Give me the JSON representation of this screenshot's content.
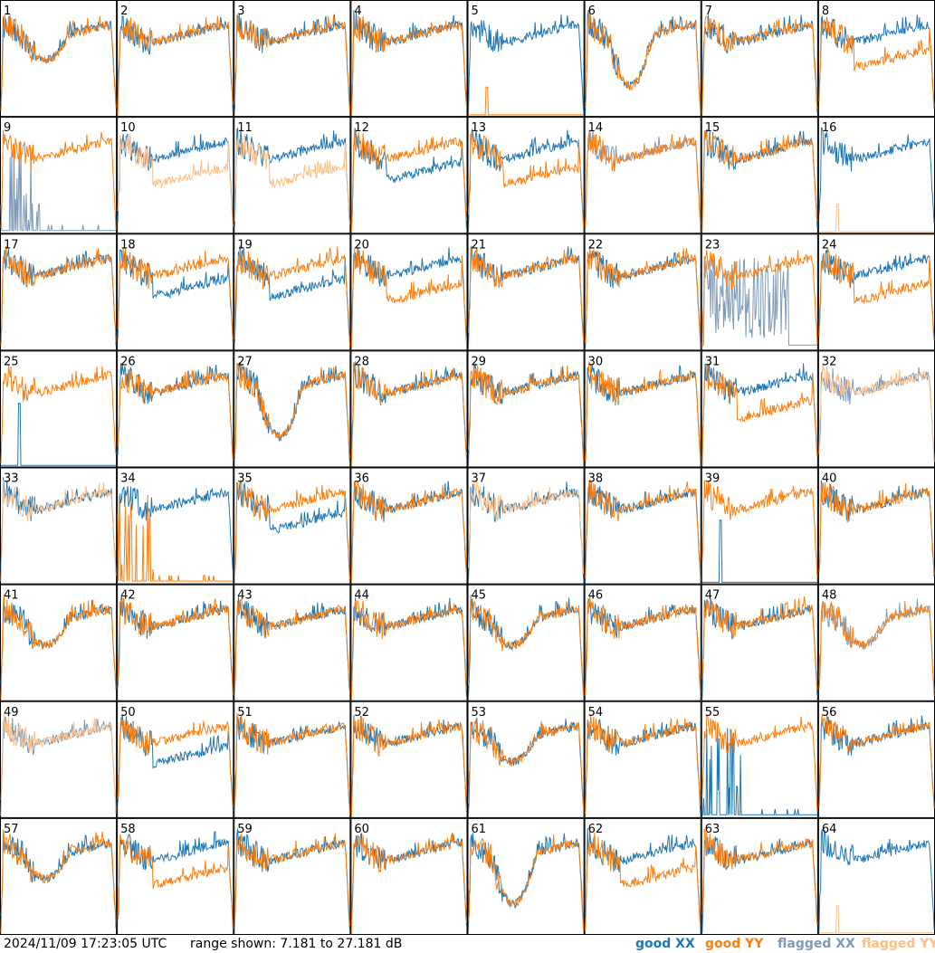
{
  "footer": {
    "timestamp": "2024/11/09 17:23:05 UTC",
    "range_text": "range shown: 7.181 to 27.181 dB"
  },
  "legend": [
    {
      "label": "good XX",
      "color": "#1f77b4"
    },
    {
      "label": "good YY",
      "color": "#ff7f0e"
    },
    {
      "label": "flagged XX",
      "color": "#7f9bb8"
    },
    {
      "label": "flagged YY",
      "color": "#ffbf86"
    }
  ],
  "chart_data": {
    "type": "line",
    "ylim": [
      7.181,
      27.181
    ],
    "yunit": "dB",
    "layout": "8x8 small multiples",
    "panels": [
      {
        "id": "1",
        "xx": "good",
        "yy": "good",
        "style": "dip"
      },
      {
        "id": "2",
        "xx": "good",
        "yy": "good",
        "style": "normal"
      },
      {
        "id": "3",
        "xx": "good",
        "yy": "good",
        "style": "normal"
      },
      {
        "id": "4",
        "xx": "good",
        "yy": "good",
        "style": "normal"
      },
      {
        "id": "5",
        "xx": "good",
        "yy": "good",
        "style": "yyflat"
      },
      {
        "id": "6",
        "xx": "good",
        "yy": "good",
        "style": "deepdip"
      },
      {
        "id": "7",
        "xx": "good",
        "yy": "good",
        "style": "normal"
      },
      {
        "id": "8",
        "xx": "good",
        "yy": "good",
        "style": "lowyy"
      },
      {
        "id": "9",
        "xx": "flagged",
        "yy": "good",
        "style": "xxspikes"
      },
      {
        "id": "10",
        "xx": "good",
        "yy": "flagged",
        "style": "lowyy"
      },
      {
        "id": "11",
        "xx": "good",
        "yy": "flagged",
        "style": "lowyy"
      },
      {
        "id": "12",
        "xx": "good",
        "yy": "good",
        "style": "lowxx"
      },
      {
        "id": "13",
        "xx": "good",
        "yy": "good",
        "style": "lowyy"
      },
      {
        "id": "14",
        "xx": "flagged",
        "yy": "good",
        "style": "normal"
      },
      {
        "id": "15",
        "xx": "good",
        "yy": "good",
        "style": "normal"
      },
      {
        "id": "16",
        "xx": "good",
        "yy": "flagged",
        "style": "yyflat"
      },
      {
        "id": "17",
        "xx": "good",
        "yy": "good",
        "style": "normal"
      },
      {
        "id": "18",
        "xx": "good",
        "yy": "good",
        "style": "lowxx"
      },
      {
        "id": "19",
        "xx": "good",
        "yy": "good",
        "style": "lowxx"
      },
      {
        "id": "20",
        "xx": "good",
        "yy": "good",
        "style": "lowyy"
      },
      {
        "id": "21",
        "xx": "good",
        "yy": "good",
        "style": "normal"
      },
      {
        "id": "22",
        "xx": "good",
        "yy": "good",
        "style": "normal"
      },
      {
        "id": "23",
        "xx": "flagged",
        "yy": "good",
        "style": "xxnoise"
      },
      {
        "id": "24",
        "xx": "good",
        "yy": "good",
        "style": "lowyy"
      },
      {
        "id": "25",
        "xx": "good",
        "yy": "good",
        "style": "yyonly"
      },
      {
        "id": "26",
        "xx": "good",
        "yy": "good",
        "style": "normal"
      },
      {
        "id": "27",
        "xx": "good",
        "yy": "good",
        "style": "deepdip"
      },
      {
        "id": "28",
        "xx": "good",
        "yy": "good",
        "style": "normal"
      },
      {
        "id": "29",
        "xx": "good",
        "yy": "good",
        "style": "normal"
      },
      {
        "id": "30",
        "xx": "good",
        "yy": "good",
        "style": "normal"
      },
      {
        "id": "31",
        "xx": "good",
        "yy": "good",
        "style": "lowyy"
      },
      {
        "id": "32",
        "xx": "flagged",
        "yy": "flagged",
        "style": "flagyy"
      },
      {
        "id": "33",
        "xx": "good",
        "yy": "flagged",
        "style": "normal"
      },
      {
        "id": "34",
        "xx": "good",
        "yy": "good",
        "style": "yyspikes"
      },
      {
        "id": "35",
        "xx": "good",
        "yy": "good",
        "style": "lowxx"
      },
      {
        "id": "36",
        "xx": "good",
        "yy": "good",
        "style": "normal"
      },
      {
        "id": "37",
        "xx": "good",
        "yy": "flagged",
        "style": "normal"
      },
      {
        "id": "38",
        "xx": "good",
        "yy": "good",
        "style": "normal"
      },
      {
        "id": "39",
        "xx": "good",
        "yy": "good",
        "style": "yyonly"
      },
      {
        "id": "40",
        "xx": "good",
        "yy": "good",
        "style": "normal"
      },
      {
        "id": "41",
        "xx": "good",
        "yy": "good",
        "style": "dip"
      },
      {
        "id": "42",
        "xx": "good",
        "yy": "good",
        "style": "normal"
      },
      {
        "id": "43",
        "xx": "good",
        "yy": "good",
        "style": "normal"
      },
      {
        "id": "44",
        "xx": "good",
        "yy": "good",
        "style": "normal"
      },
      {
        "id": "45",
        "xx": "good",
        "yy": "good",
        "style": "dip"
      },
      {
        "id": "46",
        "xx": "good",
        "yy": "good",
        "style": "normal"
      },
      {
        "id": "47",
        "xx": "good",
        "yy": "good",
        "style": "normal"
      },
      {
        "id": "48",
        "xx": "flagged",
        "yy": "good",
        "style": "dip"
      },
      {
        "id": "49",
        "xx": "flagged",
        "yy": "flagged",
        "style": "normal"
      },
      {
        "id": "50",
        "xx": "good",
        "yy": "good",
        "style": "lowxx"
      },
      {
        "id": "51",
        "xx": "good",
        "yy": "good",
        "style": "normal"
      },
      {
        "id": "52",
        "xx": "good",
        "yy": "good",
        "style": "normal"
      },
      {
        "id": "53",
        "xx": "good",
        "yy": "good",
        "style": "dip"
      },
      {
        "id": "54",
        "xx": "good",
        "yy": "good",
        "style": "normal"
      },
      {
        "id": "55",
        "xx": "good",
        "yy": "good",
        "style": "xxspikes"
      },
      {
        "id": "56",
        "xx": "good",
        "yy": "good",
        "style": "normal"
      },
      {
        "id": "57",
        "xx": "good",
        "yy": "good",
        "style": "dip"
      },
      {
        "id": "58",
        "xx": "good",
        "yy": "good",
        "style": "lowyy"
      },
      {
        "id": "59",
        "xx": "good",
        "yy": "good",
        "style": "normal"
      },
      {
        "id": "60",
        "xx": "good",
        "yy": "good",
        "style": "normal"
      },
      {
        "id": "61",
        "xx": "good",
        "yy": "good",
        "style": "deepdip"
      },
      {
        "id": "62",
        "xx": "good",
        "yy": "good",
        "style": "lowyy"
      },
      {
        "id": "63",
        "xx": "good",
        "yy": "good",
        "style": "normal"
      },
      {
        "id": "64",
        "xx": "good",
        "yy": "flagged",
        "style": "yyflat"
      }
    ]
  }
}
